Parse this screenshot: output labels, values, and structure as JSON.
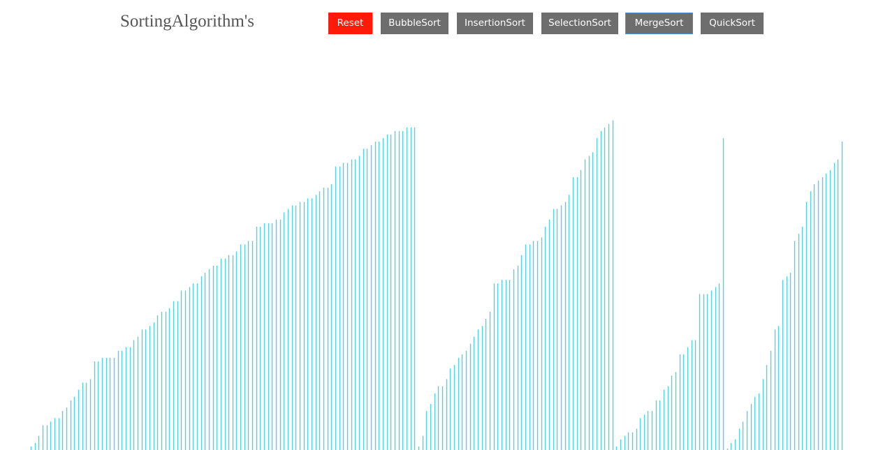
{
  "header": {
    "title": "SortingAlgorithm's"
  },
  "toolbar": {
    "buttons": [
      {
        "label": "Reset",
        "color": "#ff1a0a"
      },
      {
        "label": "BubbleSort",
        "color": "#6e6e6e"
      },
      {
        "label": "InsertionSort",
        "color": "#6e6e6e"
      },
      {
        "label": "SelectionSort",
        "color": "#6e6e6e"
      },
      {
        "label": "MergeSort",
        "color": "#6e6e6e",
        "focused": true
      },
      {
        "label": "QuickSort",
        "color": "#6e6e6e"
      }
    ]
  },
  "colors": {
    "bar": "#4fd3dc"
  },
  "chart_data": {
    "type": "bar",
    "title": "",
    "xlabel": "",
    "ylabel": "",
    "ylim": [
      0,
      100
    ],
    "note_runs": "array of bar heights (percent of max), displayed as four consecutive ascending runs",
    "values": [
      1,
      2,
      4,
      7,
      7,
      8,
      9,
      9,
      11,
      12,
      14,
      15,
      17,
      19,
      19,
      20,
      25,
      25,
      26,
      26,
      26,
      26,
      28,
      28,
      29,
      29,
      31,
      32,
      34,
      34,
      35,
      36,
      38,
      39,
      39,
      40,
      42,
      42,
      45,
      45,
      46,
      47,
      47,
      49,
      50,
      51,
      52,
      52,
      54,
      54,
      55,
      55,
      56,
      58,
      58,
      59,
      59,
      63,
      63,
      64,
      64,
      64,
      65,
      65,
      67,
      68,
      69,
      69,
      70,
      70,
      71,
      71,
      72,
      73,
      74,
      74,
      75,
      80,
      80,
      81,
      81,
      82,
      82,
      83,
      85,
      85,
      86,
      87,
      87,
      88,
      89,
      89,
      90,
      90,
      90,
      91,
      91,
      91,
      1,
      4,
      11,
      13,
      16,
      18,
      18,
      20,
      23,
      24,
      26,
      27,
      28,
      30,
      32,
      34,
      35,
      37,
      39,
      47,
      47,
      48,
      48,
      48,
      51,
      52,
      55,
      58,
      58,
      59,
      59,
      60,
      63,
      65,
      68,
      68,
      69,
      70,
      72,
      77,
      77,
      79,
      82,
      83,
      84,
      88,
      90,
      91,
      92,
      93,
      1,
      3,
      4,
      5,
      5,
      6,
      9,
      10,
      11,
      11,
      14,
      14,
      17,
      18,
      21,
      22,
      27,
      27,
      29,
      31,
      31,
      44,
      44,
      44,
      45,
      46,
      47,
      88,
      0,
      2,
      3,
      6,
      8,
      11,
      13,
      15,
      16,
      20,
      24,
      28,
      34,
      35,
      48,
      49,
      50,
      59,
      61,
      63,
      70,
      73,
      75,
      76,
      77,
      78,
      79,
      81,
      82,
      87
    ]
  }
}
